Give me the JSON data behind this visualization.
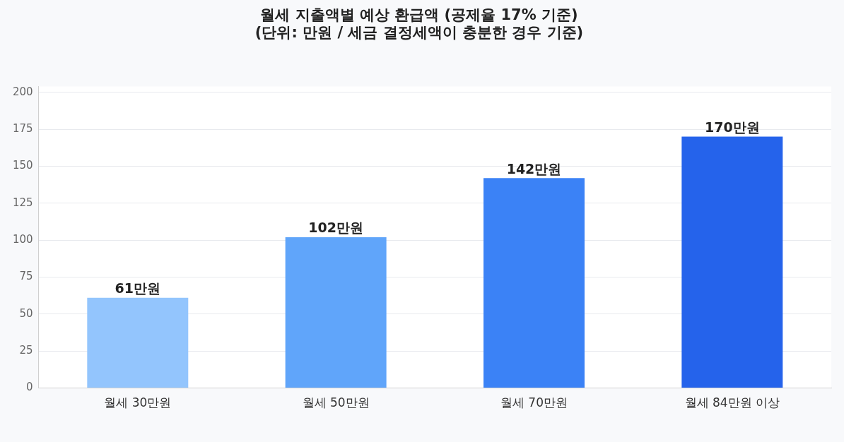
{
  "chart_data": {
    "type": "bar",
    "title": "월세 지출액별 예상 환급액 (공제율 17% 기준)",
    "subtitle": "(단위: 만원 / 세금 결정세액이 충분한 경우 기준)",
    "categories": [
      "월세 30만원",
      "월세 50만원",
      "월세 70만원",
      "월세 84만원 이상"
    ],
    "values": [
      61,
      102,
      142,
      170
    ],
    "colors": [
      "#93c5fd",
      "#60a5fa",
      "#3b82f6",
      "#2563eb"
    ],
    "value_labels": [
      "61만원",
      "102만원",
      "142만원",
      "170만원"
    ],
    "ylim": [
      0,
      204
    ],
    "yticks": [
      0,
      25,
      50,
      75,
      100,
      125,
      150,
      175,
      200
    ],
    "grid": "y",
    "legend": false
  }
}
